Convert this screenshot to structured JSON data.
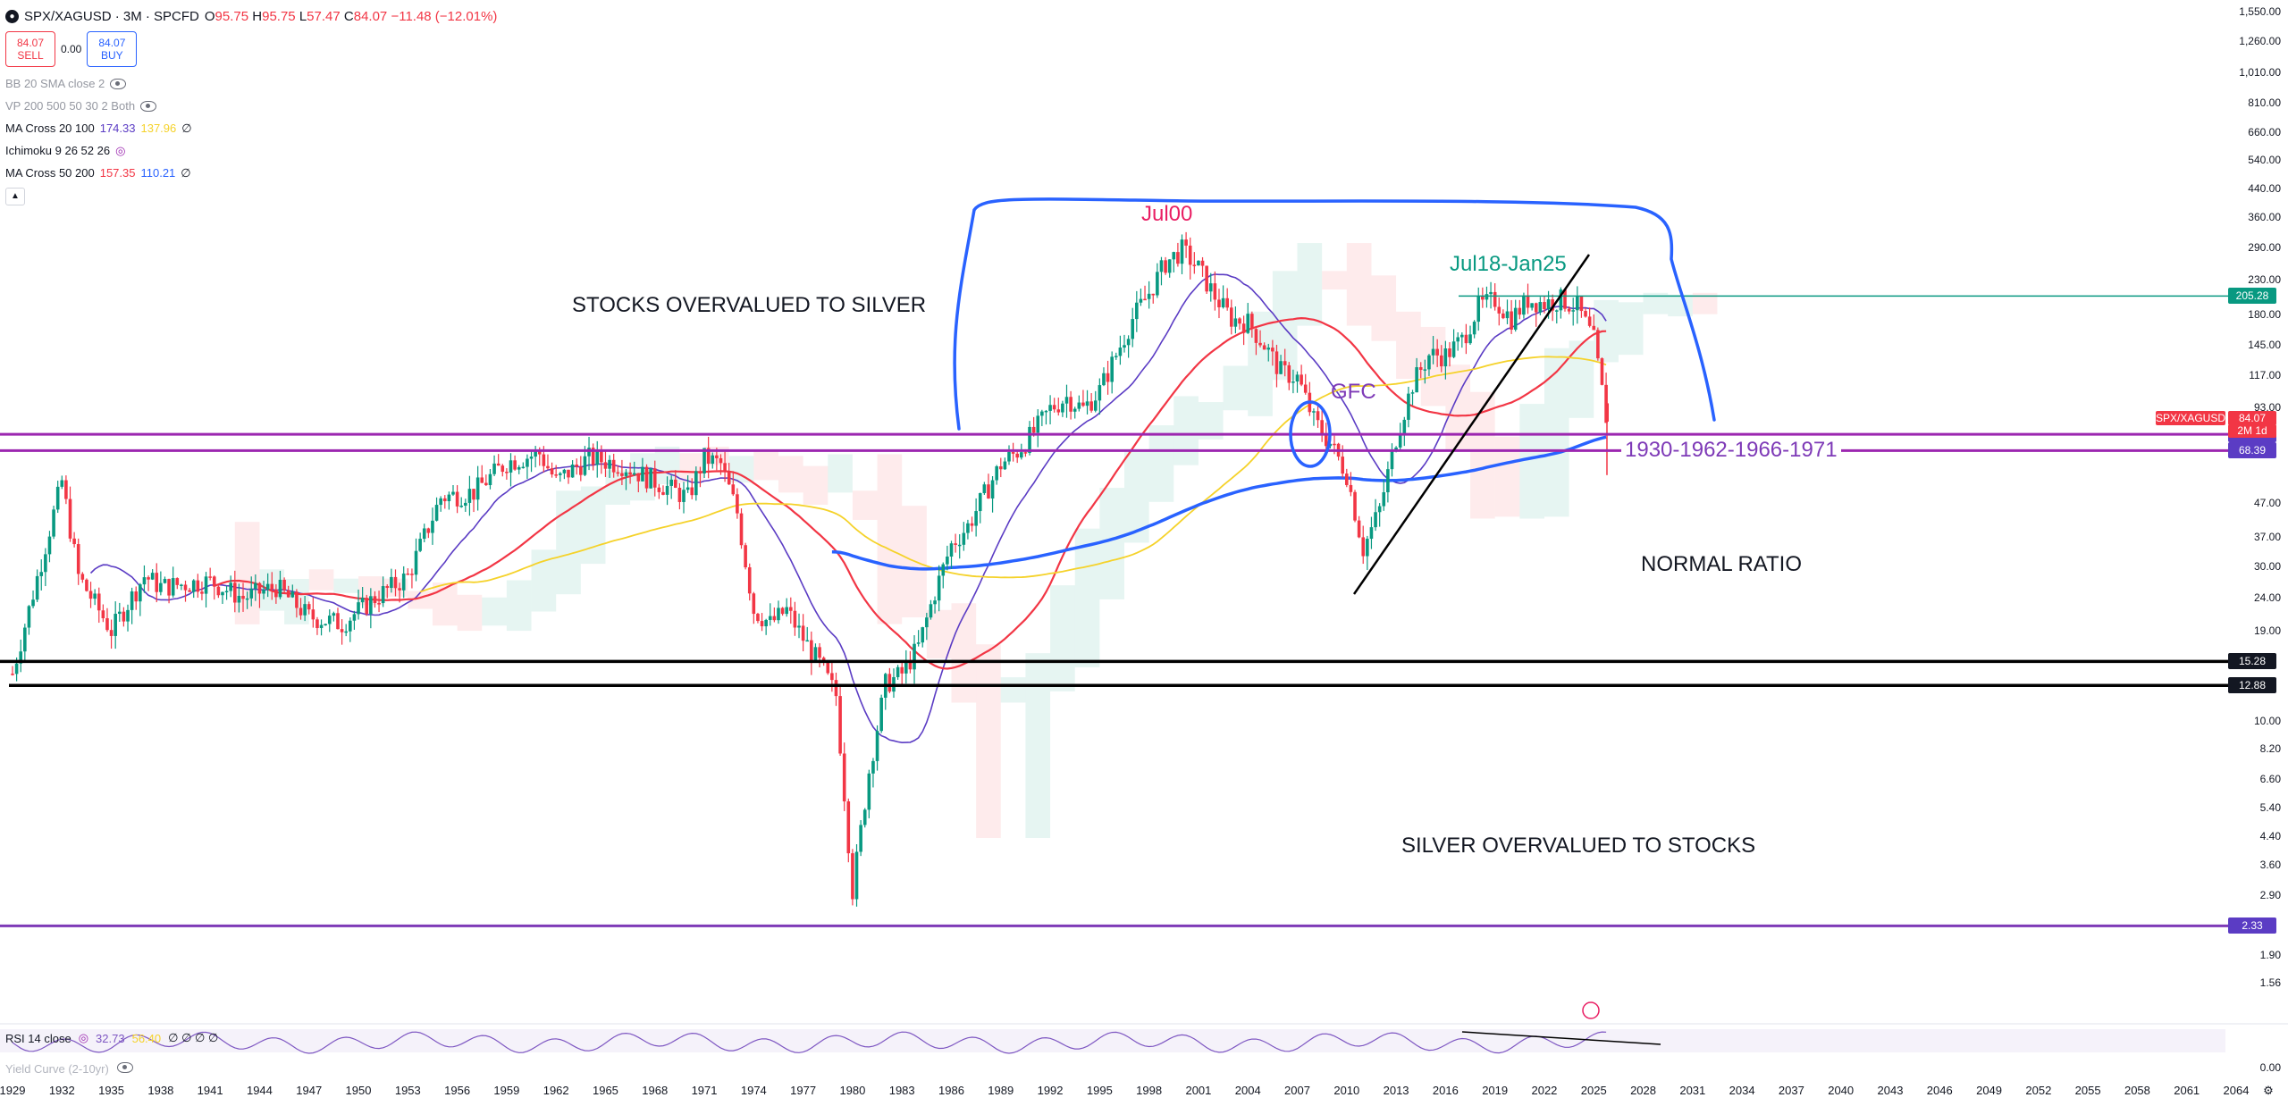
{
  "header": {
    "symbol": "SPX/XAGUSD · 3M · SPCFD",
    "ohlc": {
      "o_label": "O",
      "o": "95.75",
      "h_label": "H",
      "h": "95.75",
      "l_label": "L",
      "l": "57.47",
      "c_label": "C",
      "c": "84.07",
      "change": "−11.48 (−12.01%)"
    },
    "sell_price": "84.07",
    "sell_label": "SELL",
    "spread": "0.00",
    "buy_price": "84.07",
    "buy_label": "BUY"
  },
  "indicators": [
    {
      "name": "BB 20 SMA close 2",
      "values": [],
      "muted": true
    },
    {
      "name": "VP 200 500 50 30 2 Both",
      "values": [],
      "muted": true
    },
    {
      "name": "MA Cross 20 100",
      "values": [
        {
          "v": "174.33",
          "color": "#5b3cc4"
        },
        {
          "v": "137.96",
          "color": "#f5d22a"
        },
        {
          "v": "∅",
          "color": "#131722"
        }
      ]
    },
    {
      "name": "Ichimoku 9 26 52 26",
      "values": []
    },
    {
      "name": "MA Cross 50 200",
      "values": [
        {
          "v": "157.35",
          "color": "#f23645"
        },
        {
          "v": "110.21",
          "color": "#2962ff"
        },
        {
          "v": "∅",
          "color": "#131722"
        }
      ]
    }
  ],
  "rsi_legend": {
    "name": "RSI 14 close",
    "v1": "32.73",
    "v2": "56.40",
    "rest": "∅ ∅ ∅ ∅"
  },
  "yield_legend": {
    "name": "Yield Curve (2-10yr)"
  },
  "chart_data": {
    "type": "candlestick",
    "title": "SPX/XAGUSD · 3M · SPCFD",
    "y_scale": "log",
    "y_ticks": [
      "1,550.00",
      "1,260.00",
      "1,010.00",
      "810.00",
      "660.00",
      "540.00",
      "440.00",
      "360.00",
      "290.00",
      "230.00",
      "180.00",
      "145.00",
      "117.00",
      "93.00",
      "47.00",
      "37.00",
      "30.00",
      "24.00",
      "19.00",
      "10.00",
      "8.20",
      "6.60",
      "5.40",
      "4.40",
      "3.60",
      "2.90",
      "1.90",
      "1.56",
      "0.00"
    ],
    "x_ticks": [
      "1929",
      "1932",
      "1935",
      "1938",
      "1941",
      "1944",
      "1947",
      "1950",
      "1953",
      "1956",
      "1959",
      "1962",
      "1965",
      "1968",
      "1971",
      "1974",
      "1977",
      "1980",
      "1983",
      "1986",
      "1989",
      "1992",
      "1995",
      "1998",
      "2001",
      "2004",
      "2007",
      "2010",
      "2013",
      "2016",
      "2019",
      "2022",
      "2025",
      "2028",
      "2031",
      "2034",
      "2037",
      "2040",
      "2043",
      "2046",
      "2049",
      "2052",
      "2055",
      "2058",
      "2061",
      "2064"
    ],
    "price_path": [
      [
        1929,
        14
      ],
      [
        1932,
        55
      ],
      [
        1933,
        28
      ],
      [
        1935,
        19
      ],
      [
        1937,
        28
      ],
      [
        1938,
        26
      ],
      [
        1941,
        27
      ],
      [
        1943,
        24
      ],
      [
        1945,
        26
      ],
      [
        1947,
        21
      ],
      [
        1949,
        20
      ],
      [
        1951,
        24
      ],
      [
        1953,
        28
      ],
      [
        1955,
        49
      ],
      [
        1957,
        51
      ],
      [
        1959,
        63
      ],
      [
        1961,
        67
      ],
      [
        1962,
        55
      ],
      [
        1964,
        65
      ],
      [
        1966,
        62
      ],
      [
        1968,
        55
      ],
      [
        1970,
        49
      ],
      [
        1971,
        65
      ],
      [
        1972,
        62
      ],
      [
        1973,
        44
      ],
      [
        1974,
        22
      ],
      [
        1975,
        20
      ],
      [
        1976,
        22
      ],
      [
        1977,
        18
      ],
      [
        1978,
        15
      ],
      [
        1979,
        12
      ],
      [
        1980,
        3.0
      ],
      [
        1981,
        7
      ],
      [
        1982,
        13
      ],
      [
        1983,
        14
      ],
      [
        1984,
        17
      ],
      [
        1985,
        25
      ],
      [
        1986,
        35
      ],
      [
        1987,
        40
      ],
      [
        1988,
        50
      ],
      [
        1989,
        62
      ],
      [
        1990,
        68
      ],
      [
        1991,
        78
      ],
      [
        1992,
        92
      ],
      [
        1993,
        100
      ],
      [
        1994,
        92
      ],
      [
        1995,
        105
      ],
      [
        1996,
        135
      ],
      [
        1997,
        175
      ],
      [
        1998,
        210
      ],
      [
        1999,
        260
      ],
      [
        2000,
        285
      ],
      [
        2001,
        250
      ],
      [
        2002,
        205
      ],
      [
        2003,
        175
      ],
      [
        2004,
        170
      ],
      [
        2005,
        145
      ],
      [
        2006,
        120
      ],
      [
        2007,
        115
      ],
      [
        2008,
        85
      ],
      [
        2009,
        72
      ],
      [
        2010,
        58
      ],
      [
        2011,
        34
      ],
      [
        2012,
        45
      ],
      [
        2013,
        75
      ],
      [
        2014,
        110
      ],
      [
        2015,
        135
      ],
      [
        2016,
        135
      ],
      [
        2017,
        150
      ],
      [
        2018,
        190
      ],
      [
        2019,
        200
      ],
      [
        2020,
        175
      ],
      [
        2021,
        200
      ],
      [
        2022,
        195
      ],
      [
        2023,
        200
      ],
      [
        2024,
        190
      ],
      [
        2025,
        150
      ],
      [
        2025.8,
        84.07
      ]
    ],
    "last_price": "84.07",
    "last_countdown": "2M 1d",
    "symbol_tag": "SPX/XAGUSD",
    "horizontal_levels": [
      "205.28",
      "76.83",
      "68.39",
      "15.28",
      "12.88",
      "2.33"
    ],
    "annotations": [
      "STOCKS OVERVALUED TO SILVER",
      "Jul00",
      "Jul18-Jan25",
      "GFC",
      "1930-1962-1966-1971",
      "NORMAL RATIO",
      "SILVER OVERVALUED TO STOCKS"
    ]
  }
}
